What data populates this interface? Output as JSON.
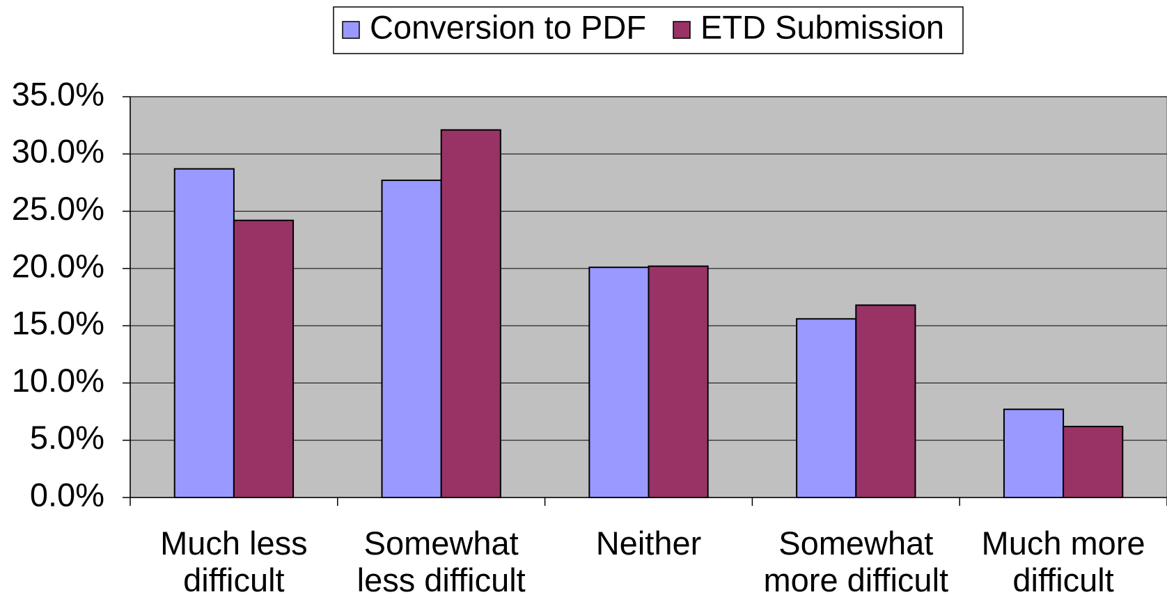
{
  "chart_data": {
    "type": "bar",
    "categories": [
      "Much less difficult",
      "Somewhat less difficult",
      "Neither",
      "Somewhat more difficult",
      "Much more difficult"
    ],
    "series": [
      {
        "name": "Conversion to PDF",
        "color": "#9999ff",
        "values": [
          28.7,
          27.7,
          20.1,
          15.6,
          7.7
        ]
      },
      {
        "name": "ETD Submission",
        "color": "#993366",
        "values": [
          24.2,
          32.1,
          20.2,
          16.8,
          6.2
        ]
      }
    ],
    "ylim": [
      0,
      35
    ],
    "yticks": [
      {
        "value": 0,
        "label": "0.0%"
      },
      {
        "value": 5,
        "label": "5.0%"
      },
      {
        "value": 10,
        "label": "10.0%"
      },
      {
        "value": 15,
        "label": "15.0%"
      },
      {
        "value": 20,
        "label": "20.0%"
      },
      {
        "value": 25,
        "label": "25.0%"
      },
      {
        "value": 30,
        "label": "30.0%"
      },
      {
        "value": 35,
        "label": "35.0%"
      }
    ],
    "grid": true,
    "legend": "top"
  }
}
